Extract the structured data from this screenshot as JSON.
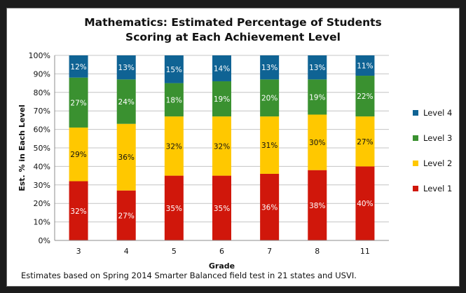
{
  "chart_data": {
    "type": "bar",
    "stacked": true,
    "title_line1": "Mathematics:  Estimated Percentage of Students",
    "title_line2": "Scoring at Each Achievement Level",
    "xlabel": "Grade",
    "ylabel": "Est. % in Each Level",
    "ylim": [
      0,
      100
    ],
    "y_ticks": [
      "0%",
      "10%",
      "20%",
      "30%",
      "40%",
      "50%",
      "60%",
      "70%",
      "80%",
      "90%",
      "100%"
    ],
    "categories": [
      "3",
      "4",
      "5",
      "6",
      "7",
      "8",
      "11"
    ],
    "series": [
      {
        "name": "Level 1",
        "color": "#d0170b",
        "label_color": "#ffffff",
        "values": [
          32,
          27,
          35,
          35,
          36,
          38,
          40
        ],
        "labels": [
          "32%",
          "27%",
          "35%",
          "35%",
          "36%",
          "38%",
          "40%"
        ]
      },
      {
        "name": "Level 2",
        "color": "#ffc800",
        "label_color": "#111111",
        "values": [
          29,
          36,
          32,
          32,
          31,
          30,
          27
        ],
        "labels": [
          "29%",
          "36%",
          "32%",
          "32%",
          "31%",
          "30%",
          "27%"
        ]
      },
      {
        "name": "Level 3",
        "color": "#3a9130",
        "label_color": "#ffffff",
        "values": [
          27,
          24,
          18,
          19,
          20,
          19,
          22
        ],
        "labels": [
          "27%",
          "24%",
          "18%",
          "19%",
          "20%",
          "19%",
          "22%"
        ]
      },
      {
        "name": "Level 4",
        "color": "#0f6394",
        "label_color": "#ffffff",
        "values": [
          12,
          13,
          15,
          14,
          13,
          13,
          11
        ],
        "labels": [
          "12%",
          "13%",
          "15%",
          "14%",
          "13%",
          "13%",
          "11%"
        ]
      }
    ],
    "legend_order": [
      "Level 4",
      "Level 3",
      "Level 2",
      "Level 1"
    ],
    "legend_position": "right",
    "grid": true
  },
  "footnote": "Estimates based on Spring 2014 Smarter Balanced field test in 21 states and USVI."
}
